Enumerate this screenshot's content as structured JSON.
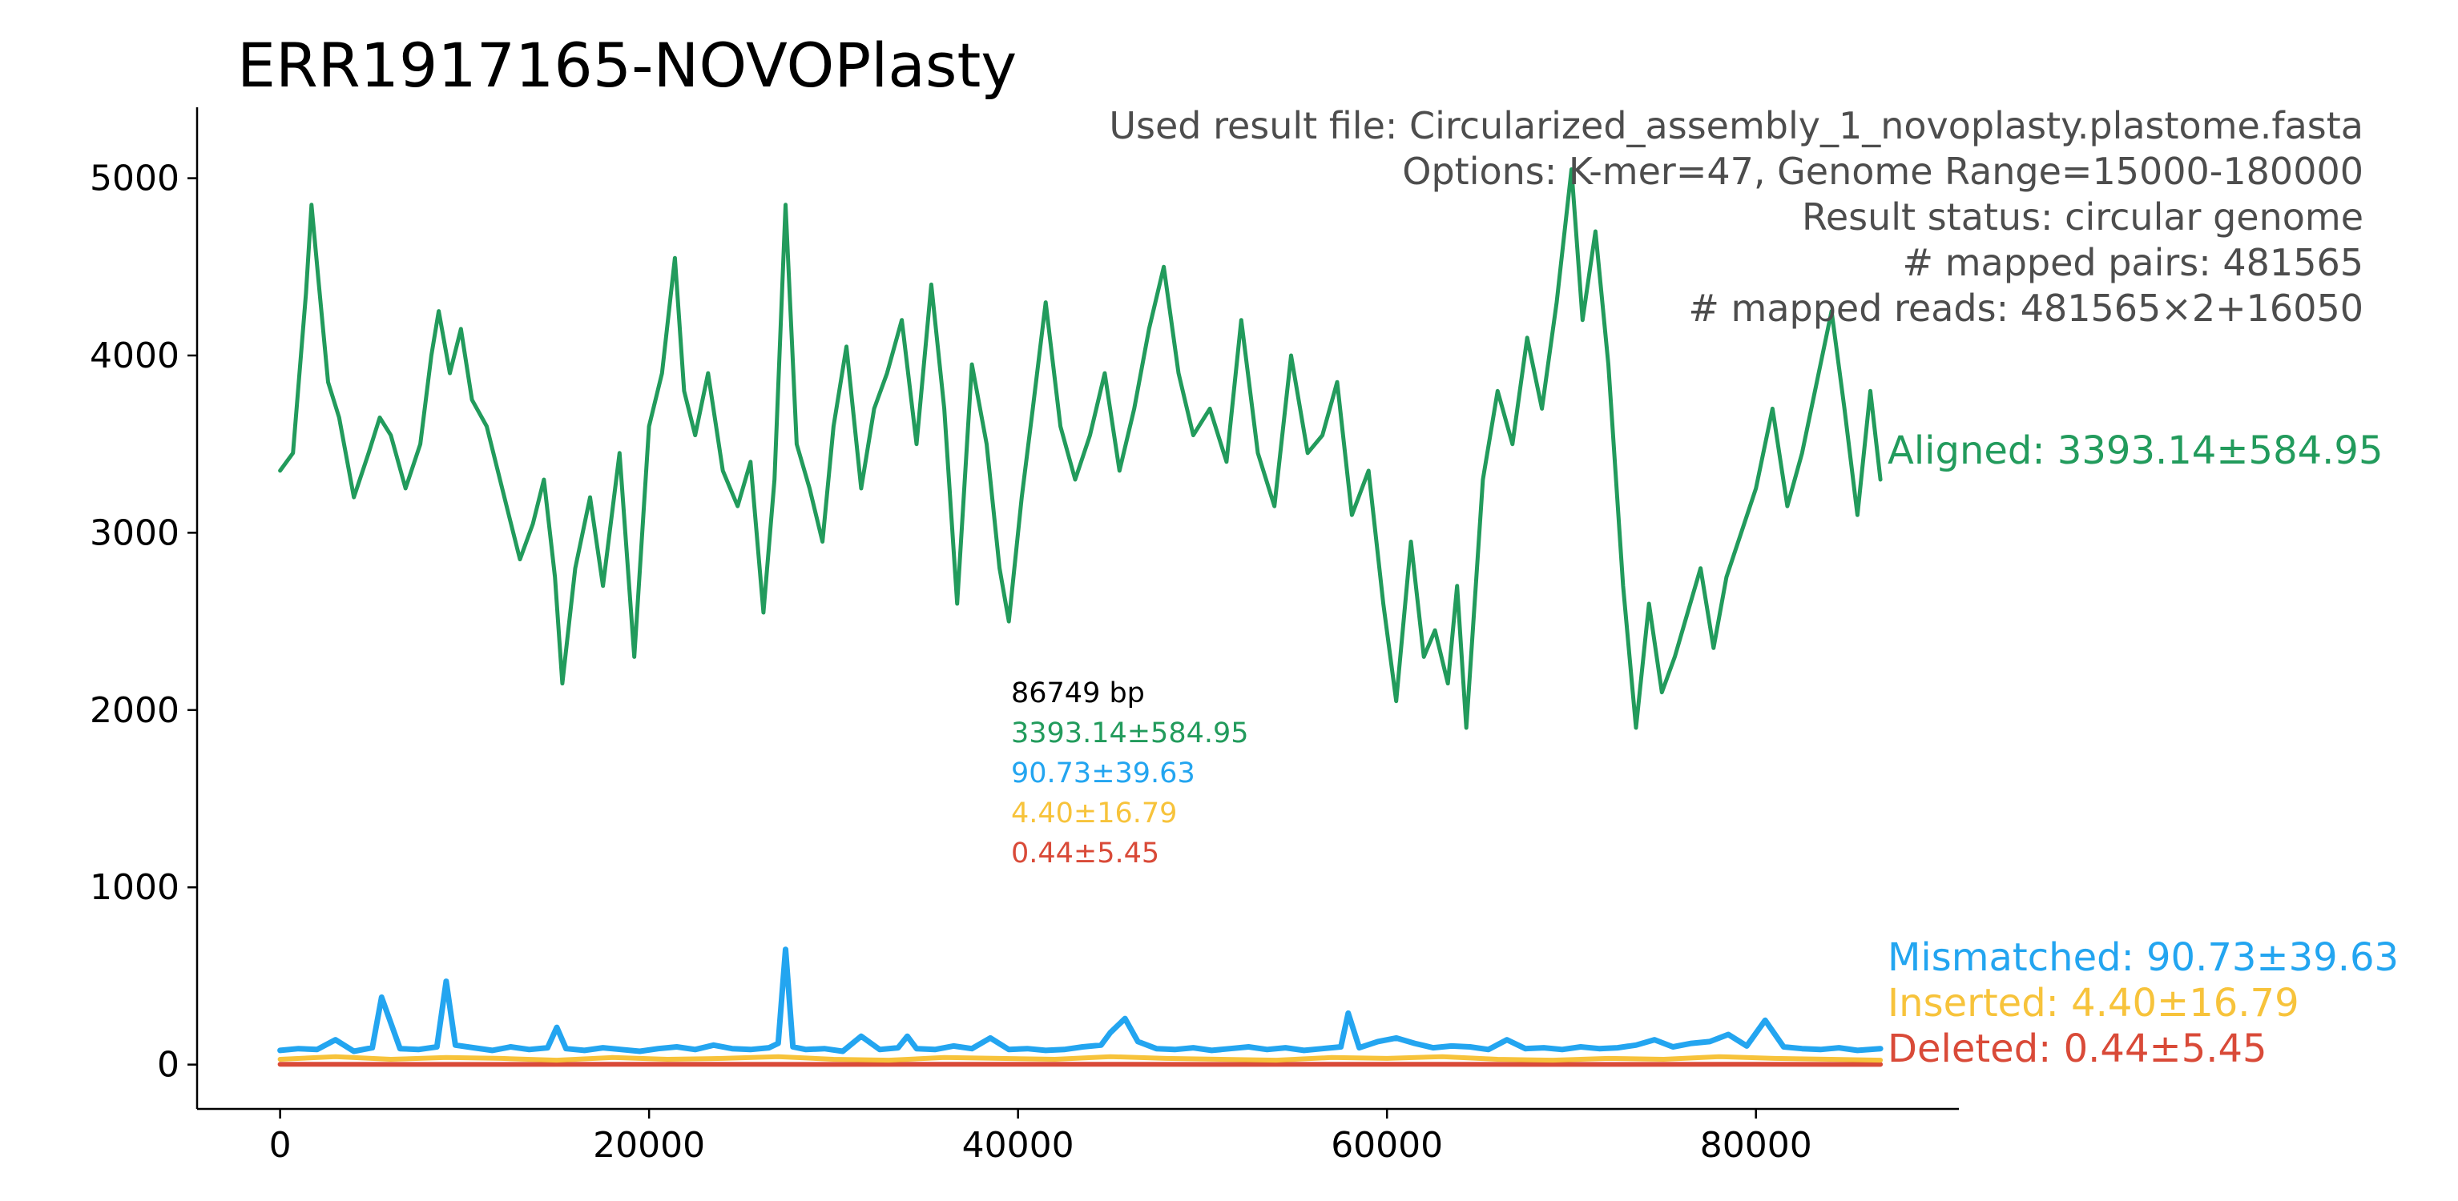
{
  "chart_data": {
    "type": "line",
    "title": "ERR1917165-NOVOPlasty",
    "xlabel": "",
    "ylabel": "",
    "xlim": [
      -4500,
      91000
    ],
    "ylim": [
      -250,
      5400
    ],
    "xticks": [
      "0",
      "20000",
      "40000",
      "60000",
      "80000"
    ],
    "yticks": [
      "0",
      "1000",
      "2000",
      "3000",
      "4000",
      "5000"
    ],
    "grid": false,
    "info_lines": [
      "Used result file: Circularized_assembly_1_novoplasty.plastome.fasta",
      "Options: K-mer=47, Genome Range=15000-180000",
      "Result status: circular genome",
      "# mapped pairs: 481565",
      "# mapped reads: 481565×2+16050"
    ],
    "stats_box": {
      "length": "86749 bp",
      "aligned": "3393.14±584.95",
      "mismatched": "90.73±39.63",
      "inserted": "4.40±16.79",
      "deleted": "0.44±5.45"
    },
    "series": [
      {
        "name": "Aligned: 3393.14±584.95",
        "color": "#229b5c",
        "x": [
          0,
          700,
          1400,
          1700,
          2100,
          2600,
          3200,
          4000,
          4800,
          5400,
          6000,
          6800,
          7600,
          8200,
          8600,
          9200,
          9800,
          10400,
          11200,
          11800,
          12400,
          13000,
          13700,
          14300,
          14900,
          15300,
          16000,
          16800,
          17500,
          18400,
          19200,
          20000,
          20700,
          21400,
          21900,
          22500,
          23200,
          24000,
          24800,
          25500,
          26200,
          26800,
          27400,
          28000,
          28700,
          29400,
          30000,
          30700,
          31500,
          32200,
          32900,
          33700,
          34500,
          35300,
          36000,
          36700,
          37500,
          38300,
          39000,
          39500,
          40200,
          40800,
          41500,
          42300,
          43100,
          43900,
          44700,
          45500,
          46300,
          47100,
          47900,
          48700,
          49500,
          50400,
          51300,
          52100,
          53000,
          53900,
          54800,
          55700,
          56500,
          57300,
          58100,
          59000,
          59800,
          60500,
          61300,
          62000,
          62600,
          63300,
          63800,
          64300,
          65200,
          66000,
          66800,
          67600,
          68400,
          69200,
          70000,
          70600,
          71300,
          72000,
          72800,
          73500,
          74200,
          74900,
          75600,
          76300,
          77000,
          77700,
          78400,
          79200,
          80000,
          80900,
          81700,
          82500,
          83300,
          84100,
          84800,
          85500,
          86200,
          86749
        ],
        "values": [
          3350,
          3450,
          4350,
          4850,
          4400,
          3850,
          3650,
          3200,
          3450,
          3650,
          3550,
          3250,
          3500,
          4000,
          4250,
          3900,
          4150,
          3750,
          3600,
          3350,
          3100,
          2850,
          3050,
          3300,
          2750,
          2150,
          2800,
          3200,
          2700,
          3450,
          2300,
          3600,
          3900,
          4550,
          3800,
          3550,
          3900,
          3350,
          3150,
          3400,
          2550,
          3300,
          4850,
          3500,
          3250,
          2950,
          3600,
          4050,
          3250,
          3700,
          3900,
          4200,
          3500,
          4400,
          3700,
          2600,
          3950,
          3500,
          2800,
          2500,
          3200,
          3700,
          4300,
          3600,
          3300,
          3550,
          3900,
          3350,
          3700,
          4150,
          4500,
          3900,
          3550,
          3700,
          3400,
          4200,
          3450,
          3150,
          4000,
          3450,
          3550,
          3850,
          3100,
          3350,
          2600,
          2050,
          2950,
          2300,
          2450,
          2150,
          2700,
          1900,
          3300,
          3800,
          3500,
          4100,
          3700,
          4300,
          5050,
          4200,
          4700,
          3950,
          2700,
          1900,
          2600,
          2100,
          2300,
          2550,
          2800,
          2350,
          2750,
          3000,
          3250,
          3700,
          3150,
          3450,
          3850,
          4250,
          3700,
          3100,
          3800,
          3300
        ]
      },
      {
        "name": "Mismatched: 90.73±39.63",
        "color": "#23a5f0",
        "x": [
          0,
          1000,
          2000,
          3000,
          4000,
          5000,
          5500,
          6500,
          7500,
          8500,
          9000,
          9500,
          10500,
          11500,
          12500,
          13500,
          14500,
          15000,
          15500,
          16500,
          17500,
          18500,
          19500,
          20500,
          21500,
          22500,
          23500,
          24500,
          25500,
          26500,
          27000,
          27400,
          27800,
          28500,
          29500,
          30500,
          31500,
          32500,
          33500,
          34000,
          34500,
          35500,
          36500,
          37500,
          38500,
          39500,
          40500,
          41500,
          42500,
          43500,
          44500,
          45000,
          45800,
          46500,
          47500,
          48500,
          49500,
          50500,
          51500,
          52500,
          53500,
          54500,
          55500,
          56500,
          57500,
          57900,
          58500,
          59500,
          60500,
          61500,
          62500,
          63500,
          64500,
          65500,
          66500,
          67500,
          68500,
          69500,
          70500,
          71500,
          72500,
          73500,
          74500,
          75500,
          76500,
          77500,
          78500,
          79500,
          80500,
          81500,
          82500,
          83500,
          84500,
          85500,
          86749
        ],
        "values": [
          80,
          90,
          85,
          140,
          75,
          95,
          380,
          90,
          85,
          100,
          470,
          110,
          95,
          80,
          100,
          85,
          95,
          210,
          90,
          80,
          95,
          85,
          75,
          90,
          100,
          85,
          110,
          90,
          85,
          95,
          120,
          650,
          100,
          85,
          90,
          75,
          160,
          85,
          95,
          160,
          90,
          85,
          105,
          90,
          150,
          85,
          90,
          80,
          85,
          100,
          110,
          180,
          260,
          130,
          90,
          85,
          95,
          80,
          90,
          100,
          85,
          95,
          80,
          90,
          100,
          290,
          95,
          130,
          150,
          120,
          95,
          105,
          100,
          85,
          140,
          90,
          95,
          85,
          100,
          90,
          95,
          110,
          140,
          100,
          120,
          130,
          170,
          105,
          250,
          100,
          90,
          85,
          95,
          80,
          90
        ]
      },
      {
        "name": "Inserted: 4.40±16.79",
        "color": "#f7c33b",
        "x": [
          0,
          3000,
          6000,
          9000,
          12000,
          15000,
          18000,
          21000,
          24000,
          27000,
          30000,
          33000,
          36000,
          39000,
          42000,
          45000,
          48000,
          51000,
          54000,
          57000,
          60000,
          63000,
          66000,
          69000,
          72000,
          75000,
          78000,
          81000,
          84000,
          86749
        ],
        "values": [
          30,
          45,
          30,
          40,
          35,
          25,
          40,
          30,
          35,
          45,
          30,
          25,
          40,
          35,
          30,
          45,
          35,
          30,
          25,
          40,
          35,
          45,
          30,
          25,
          35,
          30,
          45,
          35,
          30,
          25
        ]
      },
      {
        "name": "Deleted: 0.44±5.45",
        "color": "#d94a38",
        "x": [
          0,
          10000,
          20000,
          30000,
          40000,
          50000,
          60000,
          70000,
          80000,
          86749
        ],
        "values": [
          2,
          1,
          2,
          1,
          2,
          1,
          2,
          1,
          2,
          1
        ]
      }
    ]
  }
}
